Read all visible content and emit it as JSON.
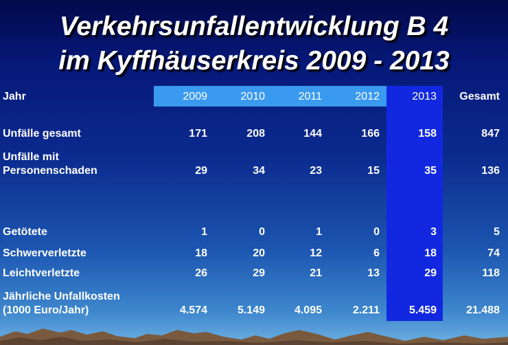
{
  "title": {
    "line1": "Verkehrsunfallentwicklung B 4",
    "line2": "im Kyffhäuserkreis 2009 - 2013"
  },
  "table": {
    "header_label": "Jahr",
    "years": [
      "2009",
      "2010",
      "2011",
      "2012",
      "2013"
    ],
    "total_header": "Gesamt",
    "rows": [
      {
        "label": [
          "Unfälle gesamt"
        ],
        "values": [
          "171",
          "208",
          "144",
          "166",
          "158"
        ],
        "total": "847"
      },
      {
        "label": [
          "Unfälle mit",
          "Personenschaden"
        ],
        "values": [
          "29",
          "34",
          "23",
          "15",
          "35"
        ],
        "total": "136"
      },
      {
        "label": [
          "Getötete"
        ],
        "values": [
          "1",
          "0",
          "1",
          "0",
          "3"
        ],
        "total": "5"
      },
      {
        "label": [
          "Schwerverletzte"
        ],
        "values": [
          "18",
          "20",
          "12",
          "6",
          "18"
        ],
        "total": "74"
      },
      {
        "label": [
          "Leichtverletzte"
        ],
        "values": [
          "26",
          "29",
          "21",
          "13",
          "29"
        ],
        "total": "118"
      },
      {
        "label": [
          "Jährliche Unfallkosten",
          "(1000 Euro/Jahr)"
        ],
        "values": [
          "4.574",
          "5.149",
          "4.095",
          "2.211",
          "5.459"
        ],
        "total": "21.488"
      }
    ]
  },
  "colors": {
    "header_band": "#3a9af0",
    "highlight_column": "#1228e0",
    "text": "#ffffff"
  }
}
